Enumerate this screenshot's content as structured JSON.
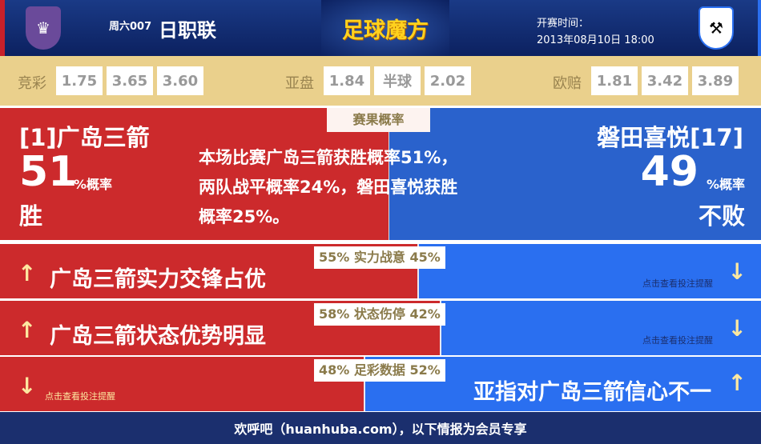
{
  "header": {
    "match_no": "周六007",
    "league": "日职联",
    "brand": "足球魔方",
    "kickoff_label": "开赛时间：",
    "kickoff_time": "2013年08月10日 18:00"
  },
  "odds": {
    "jingcai": {
      "label": "竞彩",
      "values": [
        "1.75",
        "3.65",
        "3.60"
      ]
    },
    "yapan": {
      "label": "亚盘",
      "values": [
        "1.84",
        "半球",
        "2.02"
      ]
    },
    "oupei": {
      "label": "欧赔",
      "values": [
        "1.81",
        "3.42",
        "3.89"
      ]
    }
  },
  "probability": {
    "tab": "赛果概率",
    "home": {
      "name": "[1]广岛三箭",
      "pct": "51",
      "unit": "%概率",
      "result": "胜"
    },
    "away": {
      "name": "磐田喜悦[17]",
      "pct": "49",
      "unit": "%概率",
      "result": "不败"
    },
    "summary": [
      "本场比赛广岛三箭获胜概率51%，",
      "两队战平概率24%，磐田喜悦获胜",
      "概率25%。"
    ]
  },
  "rows": [
    {
      "label": "55% 实力战意 45%",
      "home_pct": 55,
      "text": "广岛三箭实力交锋占优",
      "side": "home",
      "arrow": "↑",
      "hint": "点击查看投注提醒",
      "hint_arrow": "↓"
    },
    {
      "label": "58% 状态伤停 42%",
      "home_pct": 58,
      "text": "广岛三箭状态优势明显",
      "side": "home",
      "arrow": "↑",
      "hint": "点击查看投注提醒",
      "hint_arrow": "↓"
    },
    {
      "label": "48% 足彩数据 52%",
      "home_pct": 48,
      "text": "亚指对广岛三箭信心不一",
      "side": "away",
      "arrow": "↑",
      "hint": "点击查看投注提醒",
      "hint_arrow": "↓"
    }
  ],
  "footer": "欢呼吧（huanhuba.com），以下情报为会员专享",
  "colors": {
    "home": "#cc2a2c",
    "away": "#2a6ff0",
    "header": "#0c2160",
    "odds_bg": "#ead08c"
  }
}
